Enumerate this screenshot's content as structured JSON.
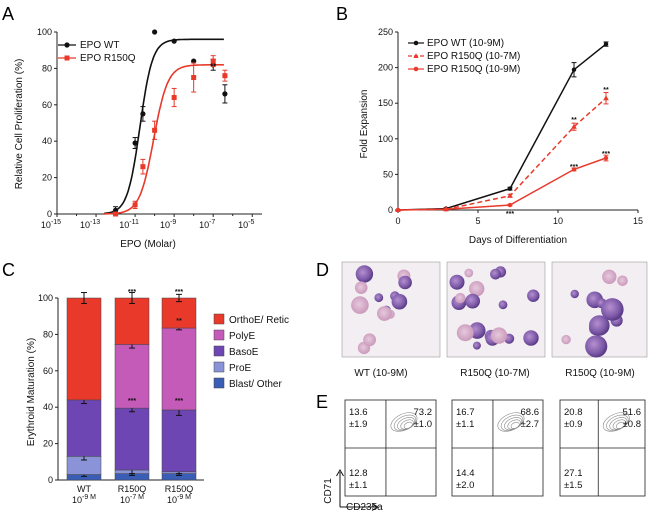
{
  "panels": {
    "A": "A",
    "B": "B",
    "C": "C",
    "D": "D",
    "E": "E"
  },
  "chart_data": [
    {
      "id": "A",
      "type": "line",
      "xscale": "log",
      "xlabel": "EPO (Molar)",
      "ylabel": "Relative Cell Proliferation (%)",
      "xlim": [
        -15,
        -4.5
      ],
      "ylim": [
        0,
        100
      ],
      "xticks": [
        -15,
        -13,
        -11,
        -9,
        -7,
        -5
      ],
      "xtick_labels": [
        "10-15",
        "10-13",
        "10-11",
        "10-9",
        "10-7",
        "10-5"
      ],
      "yticks": [
        0,
        20,
        40,
        60,
        80,
        100
      ],
      "series": [
        {
          "name": "EPO WT",
          "color": "#111111",
          "marker": "circle",
          "log_x": [
            -12,
            -11,
            -10.6,
            -10,
            -9,
            -8,
            -7,
            -6.4
          ],
          "y": [
            2,
            39,
            55,
            100,
            95,
            84,
            82,
            66
          ],
          "err": [
            2,
            3,
            4,
            0,
            0,
            0,
            3,
            5
          ],
          "fit": {
            "bottom": 0,
            "top": 96,
            "logEC50": -10.75,
            "hill": 1.35
          }
        },
        {
          "name": "EPO R150Q",
          "color": "#e8392b",
          "marker": "square",
          "log_x": [
            -12,
            -11,
            -10.6,
            -10,
            -9,
            -8,
            -7,
            -6.4
          ],
          "y": [
            0,
            5,
            26,
            46,
            64,
            75,
            84,
            76
          ],
          "err": [
            1,
            2,
            4,
            5,
            5,
            8,
            3,
            3
          ],
          "fit": {
            "bottom": 0,
            "top": 82,
            "logEC50": -10.05,
            "hill": 1.2
          }
        }
      ]
    },
    {
      "id": "B",
      "type": "line",
      "xlabel": "Days of Differentiation",
      "ylabel": "Fold Expansion",
      "xlim": [
        0,
        15
      ],
      "ylim": [
        0,
        250
      ],
      "xticks": [
        0,
        5,
        10,
        15
      ],
      "yticks": [
        0,
        50,
        100,
        150,
        200,
        250
      ],
      "series": [
        {
          "name": "EPO WT (10-9M)",
          "color": "#111111",
          "dash": "none",
          "marker": "circle",
          "x": [
            0,
            3,
            7,
            11,
            13
          ],
          "y": [
            0,
            2,
            30,
            197,
            233
          ],
          "err": [
            0,
            1,
            2,
            10,
            3
          ]
        },
        {
          "name": "EPO R150Q (10-7M)",
          "color": "#e8392b",
          "dash": "5,3",
          "marker": "triangle",
          "x": [
            0,
            3,
            7,
            11,
            13
          ],
          "y": [
            0,
            1,
            20,
            117,
            157
          ],
          "err": [
            0,
            1,
            2,
            5,
            8
          ]
        },
        {
          "name": "EPO R150Q (10-9M)",
          "color": "#e8392b",
          "dash": "none",
          "marker": "circle",
          "x": [
            0,
            3,
            7,
            11,
            13
          ],
          "y": [
            0,
            1,
            7,
            57,
            73
          ],
          "err": [
            0,
            1,
            1,
            2,
            4
          ]
        }
      ],
      "annotations": [
        {
          "text": "***",
          "x": 7,
          "y": -4
        },
        {
          "text": "**",
          "x": 11,
          "y": 128
        },
        {
          "text": "***",
          "x": 11,
          "y": 62
        },
        {
          "text": "**",
          "x": 13,
          "y": 170
        },
        {
          "text": "***",
          "x": 13,
          "y": 80
        }
      ]
    },
    {
      "id": "C",
      "type": "bar",
      "stacked": true,
      "ylabel": "Erythroid Maturation (%)",
      "ylim": [
        0,
        100
      ],
      "yticks": [
        0,
        20,
        40,
        60,
        80,
        100
      ],
      "categories": [
        {
          "line1": "WT",
          "line2": "10-9 M"
        },
        {
          "line1": "R150Q",
          "line2": "10-7 M"
        },
        {
          "line1": "R150Q",
          "line2": "10-9 M"
        }
      ],
      "series": [
        {
          "name": "Blast/ Other",
          "color": "#3a5db5",
          "values": [
            3,
            3.5,
            3.5
          ]
        },
        {
          "name": "ProE",
          "color": "#8a93d8",
          "values": [
            10,
            2,
            1
          ]
        },
        {
          "name": "BasoE",
          "color": "#6e46b4",
          "values": [
            31,
            34,
            34
          ]
        },
        {
          "name": "PolyE",
          "color": "#c55bb9",
          "values": [
            0,
            35,
            45
          ]
        },
        {
          "name": "OrthoE/ Retic",
          "color": "#e8392b",
          "values": [
            56,
            25.5,
            16.5
          ]
        }
      ],
      "boundaries_err": [
        [
          1,
          2,
          2,
          0,
          3
        ],
        [
          1,
          2,
          2,
          2,
          3
        ],
        [
          1,
          1,
          3,
          1,
          2
        ]
      ],
      "stars": [
        {
          "bar": 1,
          "y": 100,
          "text": "***"
        },
        {
          "bar": 2,
          "y": 100,
          "text": "***"
        },
        {
          "bar": 1,
          "y": 40,
          "text": "***"
        },
        {
          "bar": 2,
          "y": 40,
          "text": "***"
        },
        {
          "bar": 2,
          "y": 84,
          "text": "**"
        }
      ]
    },
    {
      "id": "E",
      "type": "table",
      "xlabel": "CD235a",
      "ylabel": "CD71",
      "plots": [
        {
          "q1": "13.6",
          "q1e": "±1.9",
          "q2": "73.2",
          "q2e": "±1.0",
          "q3": "12.8",
          "q3e": "±1.1"
        },
        {
          "q1": "16.7",
          "q1e": "±1.1",
          "q2": "68.6",
          "q2e": "±2.7",
          "q3": "14.4",
          "q3e": "±2.0"
        },
        {
          "q1": "20.8",
          "q1e": "±0.9",
          "q2": "51.6",
          "q2e": "±0.8",
          "q3": "27.1",
          "q3e": "±1.5"
        }
      ]
    }
  ],
  "panel_d": {
    "captions": [
      "WT (10-9M)",
      "R150Q (10-7M)",
      "R150Q (10-9M)"
    ]
  }
}
